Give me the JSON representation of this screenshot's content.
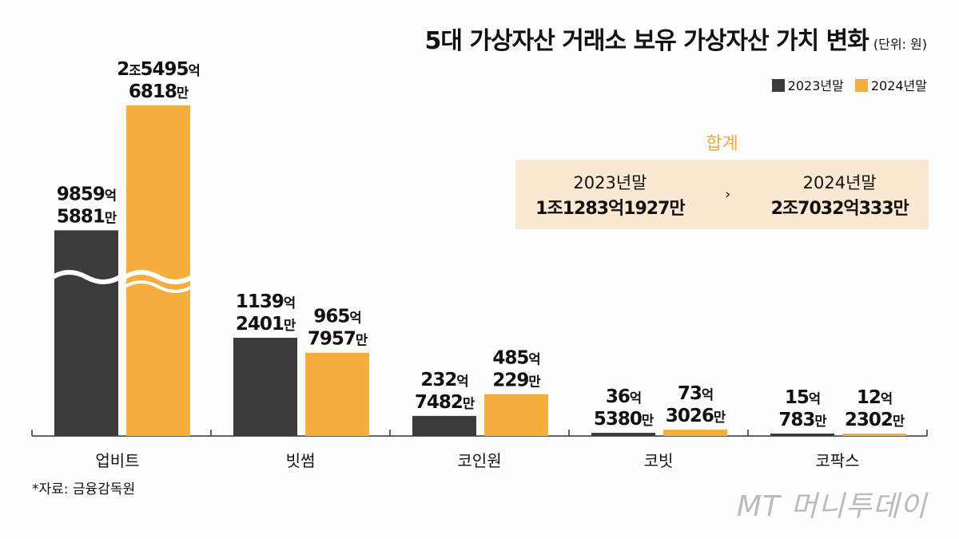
{
  "title": "5대 가상자산 거래소 보유 가상자산 가치 변화",
  "unit": "(단위: 원)",
  "legend": [
    {
      "label": "2023년말",
      "color": "#3b3b3b"
    },
    {
      "label": "2024년말",
      "color": "#f5ad3e"
    }
  ],
  "summary": {
    "title": "합계",
    "arrow": "›",
    "left": {
      "year": "2023년말",
      "value": "1조1283억1927만"
    },
    "right": {
      "year": "2024년말",
      "value": "2조7032억333만"
    }
  },
  "source": "*자료: 금융감독원",
  "watermark": "MT 머니투데이",
  "chart_data": {
    "type": "bar",
    "title": "5대 가상자산 거래소 보유 가상자산 가치 변화",
    "unit": "억 원",
    "axis_break": true,
    "categories": [
      "업비트",
      "빗썸",
      "코인원",
      "코빗",
      "코팍스"
    ],
    "series": [
      {
        "name": "2023년말",
        "color": "#3b3b3b",
        "values": [
          9859.5881,
          1139.2401,
          232.7482,
          36.538,
          15.0783
        ],
        "labels": [
          [
            "9859억",
            "5881만"
          ],
          [
            "1139억",
            "2401만"
          ],
          [
            "232억",
            "7482만"
          ],
          [
            "36억",
            "5380만"
          ],
          [
            "15억",
            "783만"
          ]
        ]
      },
      {
        "name": "2024년말",
        "color": "#f5ad3e",
        "values": [
          25495.6818,
          965.7957,
          485.0229,
          73.3026,
          12.2302
        ],
        "labels": [
          [
            "2조5495억",
            "6818만"
          ],
          [
            "965억",
            "7957만"
          ],
          [
            "485억",
            "229만"
          ],
          [
            "73억",
            "3026만"
          ],
          [
            "12억",
            "2302만"
          ]
        ]
      }
    ]
  }
}
